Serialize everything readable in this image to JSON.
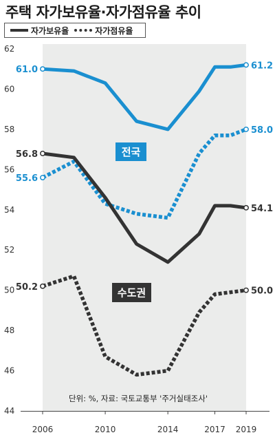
{
  "title": "주택 자가보유율·자가점유율 추이",
  "legend": {
    "solid": "자가보유율",
    "dashed": "자가점유율"
  },
  "note": "단위: %, 자료: 국토교통부 '주거실태조사'",
  "colors": {
    "nationwide": "#1a8fd0",
    "capital": "#333333",
    "band": "#ebeceb"
  },
  "chart_data": {
    "type": "line",
    "x": [
      2006,
      2008,
      2010,
      2012,
      2014,
      2016,
      2017,
      2018,
      2019
    ],
    "x_ticks": [
      "2006",
      "2010",
      "2014",
      "2017",
      "2019"
    ],
    "ylim": [
      44,
      62
    ],
    "y_ticks": [
      44,
      46,
      48,
      50,
      52,
      54,
      56,
      58,
      60,
      62
    ],
    "groups": [
      {
        "name": "전국",
        "color": "#1a8fd0",
        "series": [
          {
            "name": "자가보유율",
            "style": "solid",
            "values": [
              61.0,
              60.9,
              60.3,
              58.4,
              58.0,
              59.9,
              61.1,
              61.1,
              61.2
            ],
            "start_label": "61.0",
            "end_label": "61.2"
          },
          {
            "name": "자가점유율",
            "style": "dashed",
            "values": [
              55.6,
              56.4,
              54.3,
              53.8,
              53.6,
              56.8,
              57.7,
              57.7,
              58.0
            ],
            "start_label": "55.6",
            "end_label": "58.0"
          }
        ]
      },
      {
        "name": "수도권",
        "color": "#333333",
        "series": [
          {
            "name": "자가보유율",
            "style": "solid",
            "values": [
              56.8,
              56.6,
              54.6,
              52.3,
              51.4,
              52.8,
              54.2,
              54.2,
              54.1
            ],
            "start_label": "56.8",
            "end_label": "54.1"
          },
          {
            "name": "자가점유율",
            "style": "dashed",
            "values": [
              50.2,
              50.7,
              46.7,
              45.8,
              46.0,
              48.9,
              49.8,
              49.9,
              50.0
            ],
            "start_label": "50.2",
            "end_label": "50.0"
          }
        ]
      }
    ]
  }
}
